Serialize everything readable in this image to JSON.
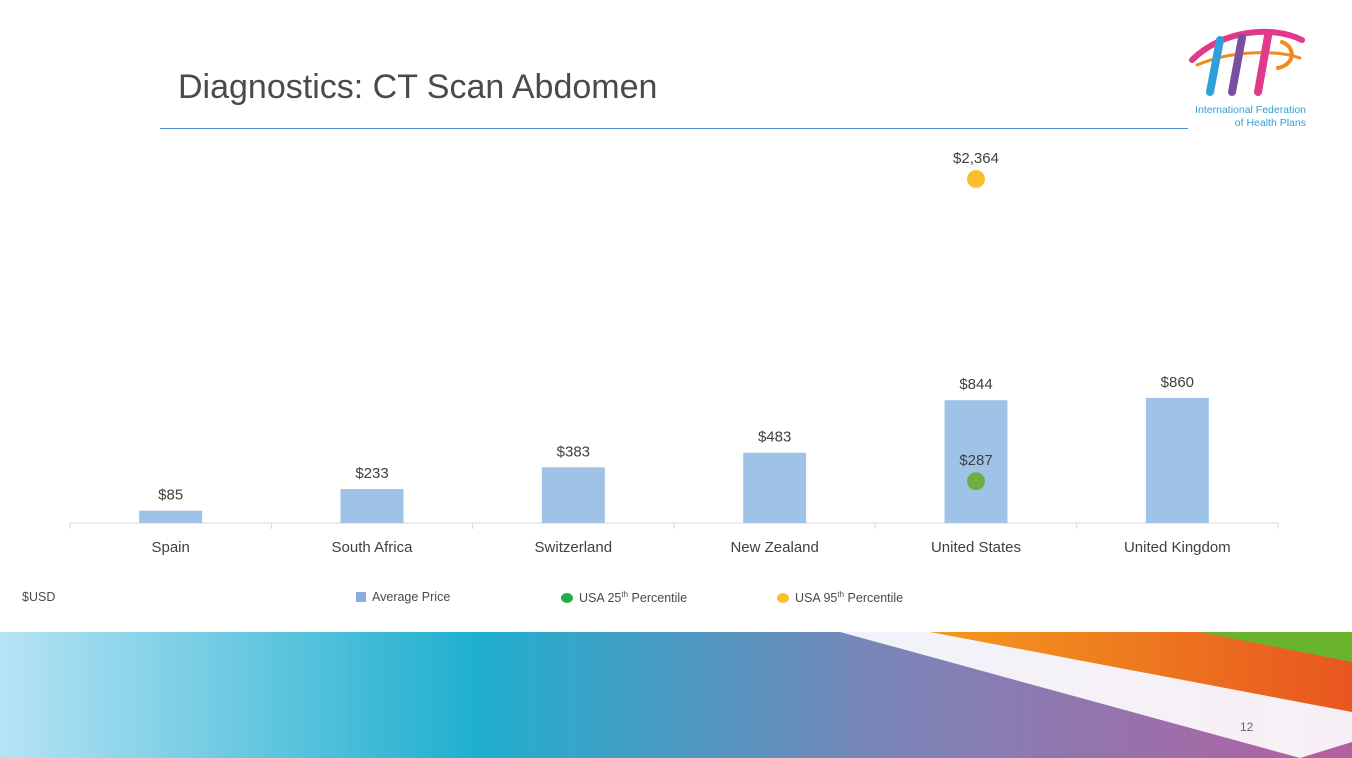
{
  "slide": {
    "title": "Diagnostics: CT Scan Abdomen",
    "page_number": "12"
  },
  "logo": {
    "line1": "International Federation",
    "line2": "of Health Plans"
  },
  "legend": {
    "units": "$USD",
    "average": "Average Price",
    "p25_prefix": "USA 25",
    "p25_sup": "th",
    "p25_suffix": " Percentile",
    "p95_prefix": "USA 95",
    "p95_sup": "th",
    "p95_suffix": " Percentile"
  },
  "colors": {
    "bar": "#9fc3e6",
    "p25": "#70ad47",
    "p95": "#fbbf2c",
    "legend_bar": "#8aaede",
    "legend_p25": "#1fae4b",
    "legend_p95": "#fbbf2c"
  },
  "chart_data": {
    "type": "bar",
    "categories": [
      "Spain",
      "South Africa",
      "Switzerland",
      "New Zealand",
      "United States",
      "United Kingdom"
    ],
    "series": [
      {
        "name": "Average Price",
        "type": "bar",
        "values": [
          85,
          233,
          383,
          483,
          844,
          860
        ],
        "labels": [
          "$85",
          "$233",
          "$383",
          "$483",
          "$844",
          "$860"
        ]
      },
      {
        "name": "USA 25th Percentile",
        "type": "marker",
        "values": [
          null,
          null,
          null,
          null,
          287,
          null
        ],
        "labels": [
          null,
          null,
          null,
          null,
          "$287",
          null
        ]
      },
      {
        "name": "USA 95th Percentile",
        "type": "marker",
        "values": [
          null,
          null,
          null,
          null,
          2364,
          null
        ],
        "labels": [
          null,
          null,
          null,
          null,
          "$2,364",
          null
        ]
      }
    ],
    "ylim": [
      0,
      2600
    ],
    "ylabel": "$USD",
    "grid": false,
    "legend_position": "bottom"
  }
}
